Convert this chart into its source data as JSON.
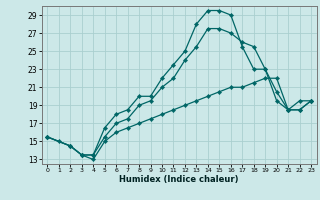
{
  "xlabel": "Humidex (Indice chaleur)",
  "ylabel": "",
  "bg_color": "#cce8e8",
  "grid_color": "#aacfcf",
  "line_color": "#006666",
  "xlim": [
    -0.5,
    23.5
  ],
  "ylim": [
    12.5,
    30.0
  ],
  "xticks": [
    0,
    1,
    2,
    3,
    4,
    5,
    6,
    7,
    8,
    9,
    10,
    11,
    12,
    13,
    14,
    15,
    16,
    17,
    18,
    19,
    20,
    21,
    22,
    23
  ],
  "yticks": [
    13,
    15,
    17,
    19,
    21,
    23,
    25,
    27,
    29
  ],
  "line1_x": [
    0,
    1,
    2,
    3,
    4,
    5,
    6,
    7,
    8,
    9,
    10,
    11,
    12,
    13,
    14,
    15,
    16,
    17,
    18,
    19,
    20,
    21,
    22,
    23
  ],
  "line1_y": [
    15.5,
    15.0,
    14.5,
    13.5,
    13.5,
    16.5,
    18.0,
    18.5,
    20.0,
    20.0,
    22.0,
    23.5,
    25.0,
    28.0,
    29.5,
    29.5,
    29.0,
    25.5,
    23.0,
    23.0,
    19.5,
    18.5,
    19.5,
    19.5
  ],
  "line2_x": [
    0,
    2,
    3,
    4,
    5,
    6,
    7,
    8,
    9,
    10,
    11,
    12,
    13,
    14,
    15,
    16,
    17,
    18,
    19,
    20,
    21,
    22,
    23
  ],
  "line2_y": [
    15.5,
    14.5,
    13.5,
    13.5,
    15.5,
    17.0,
    17.5,
    19.0,
    19.5,
    21.0,
    22.0,
    24.0,
    25.5,
    27.5,
    27.5,
    27.0,
    26.0,
    25.5,
    23.0,
    20.5,
    18.5,
    18.5,
    19.5
  ],
  "line3_x": [
    0,
    2,
    3,
    4,
    5,
    6,
    7,
    8,
    9,
    10,
    11,
    12,
    13,
    14,
    15,
    16,
    17,
    18,
    19,
    20,
    21,
    22,
    23
  ],
  "line3_y": [
    15.5,
    14.5,
    13.5,
    13.0,
    15.0,
    16.0,
    16.5,
    17.0,
    17.5,
    18.0,
    18.5,
    19.0,
    19.5,
    20.0,
    20.5,
    21.0,
    21.0,
    21.5,
    22.0,
    22.0,
    18.5,
    18.5,
    19.5
  ]
}
